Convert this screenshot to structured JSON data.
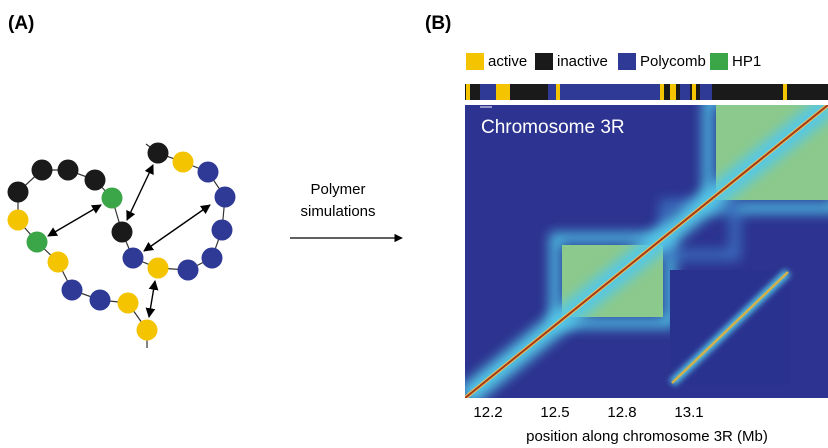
{
  "panel_a": {
    "label": "(A)"
  },
  "arrow": {
    "label_lines": [
      "Polymer",
      "simulations"
    ]
  },
  "panel_b": {
    "label": "(B)",
    "legend": [
      {
        "name": "active",
        "color": "#f5c400"
      },
      {
        "name": "inactive",
        "color": "#1a1a1a"
      },
      {
        "name": "Polycomb",
        "color": "#2f3a96"
      },
      {
        "name": "HP1",
        "color": "#3aa648"
      }
    ],
    "heatmap_title": "Chromosome 3R",
    "x_tick_labels": [
      "12.2",
      "12.5",
      "12.8",
      "13.1"
    ],
    "x_axis_label": "position along chromosome 3R (Mb)"
  }
}
